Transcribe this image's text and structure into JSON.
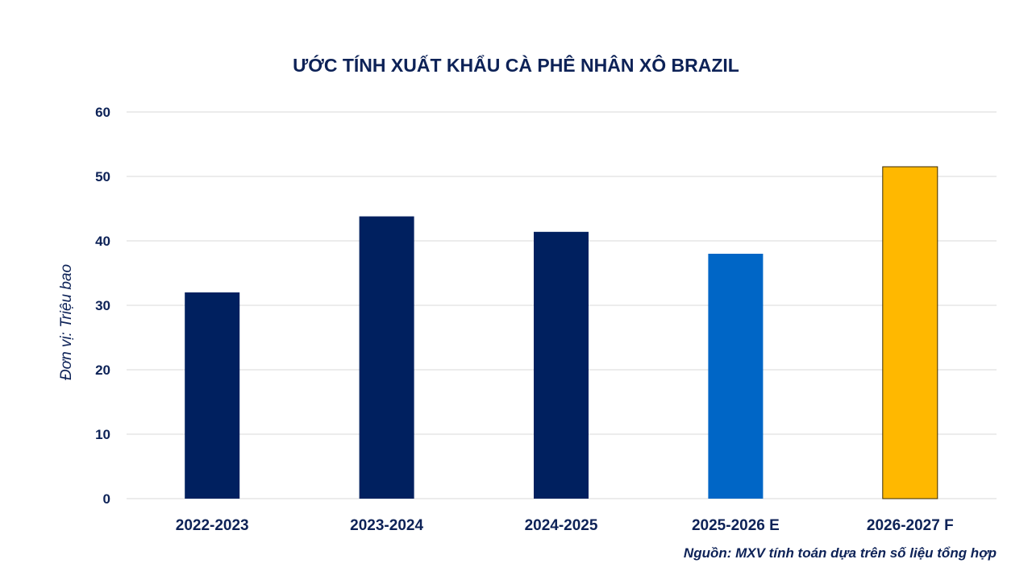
{
  "chart_data": {
    "type": "bar",
    "title": "ƯỚC TÍNH XUẤT KHẨU CÀ PHÊ NHÂN XÔ BRAZIL",
    "ylabel": "Đơn vị:  Triệu bao",
    "xlabel": "",
    "categories": [
      "2022-2023",
      "2023-2024",
      "2024-2025",
      "2025-2026 E",
      "2026-2027 F"
    ],
    "values": [
      32,
      43.8,
      41.4,
      38,
      51.5
    ],
    "bar_colors": [
      "#00205f",
      "#00205f",
      "#00205f",
      "#0066c6",
      "#ffb800"
    ],
    "ylim": [
      0,
      60
    ],
    "yticks": [
      0,
      10,
      20,
      30,
      40,
      50,
      60
    ],
    "grid": true,
    "legend": "none"
  },
  "source_note": "Nguồn: MXV tính toán dựa trên số liệu tổng hợp"
}
